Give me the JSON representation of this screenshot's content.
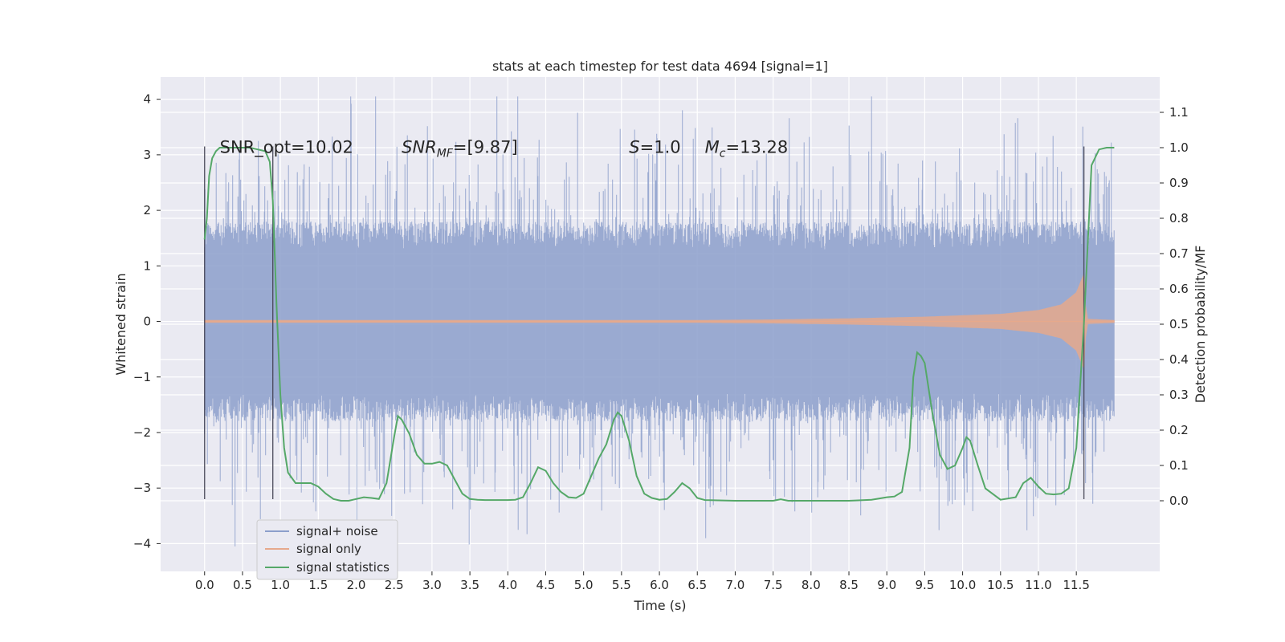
{
  "chart_data": {
    "type": "line",
    "title": "stats at each timestep for test data 4694 [signal=1]",
    "xlabel": "Time (s)",
    "ylabel_left": "Whitened strain",
    "ylabel_right": "Detection probability/MF",
    "xlim": [
      -0.58,
      12.6
    ],
    "ylim_left": [
      -4.5,
      4.4
    ],
    "ylim_right": [
      -0.2,
      1.2
    ],
    "x_ticks": [
      0.0,
      0.5,
      1.0,
      1.5,
      2.0,
      2.5,
      3.0,
      3.5,
      4.0,
      4.5,
      5.0,
      5.5,
      6.0,
      6.5,
      7.0,
      7.5,
      8.0,
      8.5,
      9.0,
      9.5,
      10.0,
      10.5,
      11.0,
      11.5
    ],
    "x_tick_labels": [
      "0.0",
      "0.5",
      "1.0",
      "1.5",
      "2.0",
      "2.5",
      "3.0",
      "3.5",
      "4.0",
      "4.5",
      "5.0",
      "5.5",
      "6.0",
      "6.5",
      "7.0",
      "7.5",
      "8.0",
      "8.5",
      "9.0",
      "9.5",
      "10.0",
      "10.5",
      "11.0",
      "11.5"
    ],
    "y_ticks_left": [
      4,
      3,
      2,
      1,
      0,
      -1,
      -2,
      -3,
      -4
    ],
    "y_tick_labels_left": [
      "4",
      "3",
      "2",
      "1",
      "0",
      "−1",
      "−2",
      "−3",
      "−4"
    ],
    "y_ticks_right": [
      1.1,
      1.0,
      0.9,
      0.8,
      0.7,
      0.6,
      0.5,
      0.4,
      0.3,
      0.2,
      0.1,
      0.0
    ],
    "y_tick_labels_right": [
      "1.1",
      "1.0",
      "0.9",
      "0.8",
      "0.7",
      "0.6",
      "0.5",
      "0.4",
      "0.3",
      "0.2",
      "0.1",
      "0.0"
    ],
    "grid": true,
    "legend_position": "lower-left",
    "annotations": [
      {
        "x": 0.2,
        "y": 3.15,
        "text": "SNR_opt=10.02"
      },
      {
        "x": 2.6,
        "y": 3.15,
        "base": "SNR",
        "sub": "MF",
        "rest": "=[9.87]"
      },
      {
        "x": 5.6,
        "y": 3.15,
        "base": "S",
        "rest": "=1.0"
      },
      {
        "x": 6.6,
        "y": 3.15,
        "base": "M",
        "sub": "c",
        "rest": "=13.28"
      }
    ],
    "vlines": [
      {
        "x": 0.0,
        "ymin": -3.2,
        "ymax": 3.15
      },
      {
        "x": 0.9,
        "ymin": -3.2,
        "ymax": 3.15
      },
      {
        "x": 11.6,
        "ymin": -3.2,
        "ymax": 3.15
      }
    ],
    "series": [
      {
        "name": "signal+ noise",
        "color": "#8c9fcb",
        "axis": "left",
        "style": "noise",
        "x_range": [
          0.0,
          12.0
        ],
        "typical_amplitude": 1.8,
        "peak_amplitude": 4.05
      },
      {
        "name": "signal only",
        "color": "#e6a98c",
        "axis": "left",
        "style": "chirp",
        "envelope_t": [
          0.0,
          6.5,
          7.5,
          8.5,
          9.5,
          10.5,
          11.0,
          11.3,
          11.5,
          11.6,
          11.62,
          11.65,
          12.0
        ],
        "envelope_a": [
          0.02,
          0.02,
          0.03,
          0.05,
          0.08,
          0.13,
          0.2,
          0.3,
          0.52,
          0.85,
          0.3,
          0.04,
          0.02
        ]
      },
      {
        "name": "signal statistics",
        "color": "#55a868",
        "axis": "right",
        "style": "line",
        "x": [
          0.0,
          0.03,
          0.06,
          0.1,
          0.15,
          0.2,
          0.3,
          0.4,
          0.5,
          0.6,
          0.7,
          0.8,
          0.86,
          0.9,
          0.95,
          1.0,
          1.05,
          1.1,
          1.2,
          1.3,
          1.4,
          1.5,
          1.6,
          1.7,
          1.8,
          1.9,
          2.0,
          2.1,
          2.2,
          2.3,
          2.4,
          2.5,
          2.55,
          2.6,
          2.7,
          2.8,
          2.9,
          3.0,
          3.1,
          3.2,
          3.3,
          3.4,
          3.5,
          3.6,
          3.7,
          3.8,
          3.9,
          4.0,
          4.1,
          4.2,
          4.3,
          4.4,
          4.5,
          4.6,
          4.7,
          4.8,
          4.9,
          5.0,
          5.1,
          5.2,
          5.3,
          5.4,
          5.45,
          5.5,
          5.6,
          5.7,
          5.8,
          5.9,
          6.0,
          6.1,
          6.2,
          6.3,
          6.4,
          6.5,
          6.6,
          7.0,
          7.5,
          7.6,
          7.7,
          8.0,
          8.5,
          8.8,
          9.0,
          9.1,
          9.2,
          9.3,
          9.35,
          9.4,
          9.45,
          9.5,
          9.6,
          9.7,
          9.8,
          9.9,
          10.0,
          10.05,
          10.1,
          10.2,
          10.3,
          10.5,
          10.7,
          10.8,
          10.9,
          11.0,
          11.1,
          11.2,
          11.3,
          11.4,
          11.5,
          11.6,
          11.7,
          11.8,
          11.9,
          12.0
        ],
        "y": [
          0.74,
          0.8,
          0.92,
          0.97,
          0.99,
          1.0,
          1.0,
          1.0,
          1.0,
          1.0,
          0.995,
          0.99,
          0.96,
          0.85,
          0.55,
          0.3,
          0.15,
          0.08,
          0.05,
          0.05,
          0.05,
          0.04,
          0.02,
          0.005,
          0.0,
          0.0,
          0.005,
          0.01,
          0.008,
          0.005,
          0.05,
          0.18,
          0.24,
          0.23,
          0.19,
          0.13,
          0.105,
          0.105,
          0.11,
          0.1,
          0.06,
          0.02,
          0.005,
          0.003,
          0.002,
          0.002,
          0.002,
          0.002,
          0.003,
          0.01,
          0.05,
          0.095,
          0.085,
          0.05,
          0.025,
          0.01,
          0.008,
          0.02,
          0.07,
          0.12,
          0.16,
          0.23,
          0.25,
          0.24,
          0.17,
          0.07,
          0.02,
          0.008,
          0.003,
          0.005,
          0.025,
          0.05,
          0.035,
          0.008,
          0.002,
          0.0,
          0.0,
          0.004,
          0.0,
          0.0,
          0.0,
          0.003,
          0.01,
          0.012,
          0.025,
          0.15,
          0.35,
          0.42,
          0.41,
          0.39,
          0.25,
          0.13,
          0.09,
          0.1,
          0.15,
          0.18,
          0.17,
          0.1,
          0.035,
          0.003,
          0.01,
          0.05,
          0.065,
          0.04,
          0.02,
          0.018,
          0.02,
          0.035,
          0.15,
          0.5,
          0.95,
          0.995,
          1.0,
          1.0
        ]
      }
    ]
  }
}
